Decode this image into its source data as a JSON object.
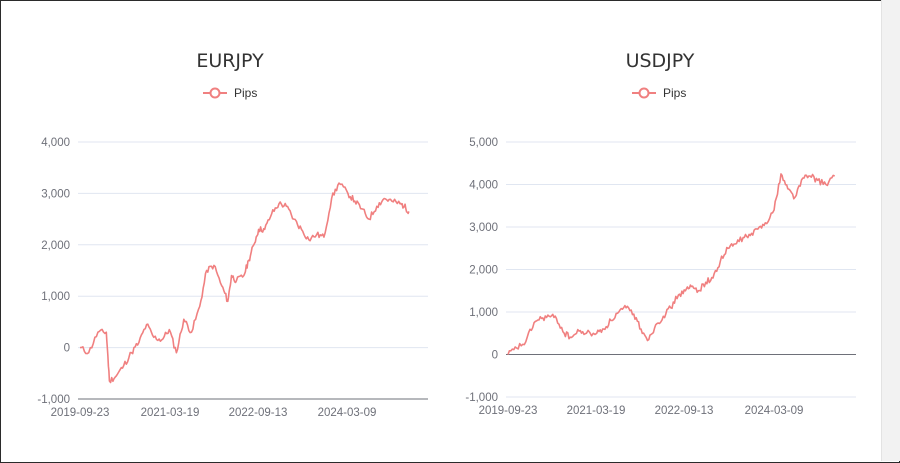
{
  "charts": [
    {
      "title": "EURJPY",
      "legend": "Pips",
      "y_ticks": [
        "4,000",
        "3,000",
        "2,000",
        "1,000",
        "0",
        "-1,000"
      ],
      "x_ticks": [
        "2019-09-23",
        "2021-03-19",
        "2022-09-13",
        "2024-03-09"
      ]
    },
    {
      "title": "USDJPY",
      "legend": "Pips",
      "y_ticks": [
        "5,000",
        "4,000",
        "3,000",
        "2,000",
        "1,000",
        "0",
        "-1,000"
      ],
      "x_ticks": [
        "2019-09-23",
        "2021-03-19",
        "2022-09-13",
        "2024-03-09"
      ]
    }
  ],
  "chart_data": [
    {
      "type": "line",
      "title": "EURJPY",
      "xlabel": "",
      "ylabel": "",
      "ylim": [
        -1000,
        4000
      ],
      "grid": true,
      "legend_position": "top-center",
      "series": [
        {
          "name": "Pips",
          "color": "#f08080",
          "x": [
            "2019-09-23",
            "2019-11-15",
            "2020-01-10",
            "2020-03-01",
            "2020-03-20",
            "2020-05-01",
            "2020-06-15",
            "2020-08-01",
            "2020-09-15",
            "2020-11-01",
            "2020-12-15",
            "2021-02-01",
            "2021-03-19",
            "2021-05-01",
            "2021-06-15",
            "2021-08-01",
            "2021-09-20",
            "2021-11-01",
            "2021-12-15",
            "2022-02-01",
            "2022-03-10",
            "2022-04-01",
            "2022-05-01",
            "2022-06-15",
            "2022-07-15",
            "2022-08-15",
            "2022-09-13",
            "2022-10-20",
            "2022-12-01",
            "2023-01-15",
            "2023-03-01",
            "2023-04-15",
            "2023-06-01",
            "2023-07-15",
            "2023-09-01",
            "2023-10-15",
            "2023-12-01",
            "2024-01-15",
            "2024-03-09",
            "2024-04-20",
            "2024-06-01",
            "2024-07-15",
            "2024-09-01",
            "2024-10-15",
            "2024-12-01",
            "2025-01-20",
            "2025-02-15",
            "2025-03-15"
          ],
          "y": [
            0,
            -100,
            300,
            300,
            -650,
            -550,
            -350,
            -100,
            100,
            450,
            200,
            150,
            350,
            -100,
            550,
            300,
            800,
            1500,
            1600,
            1200,
            900,
            1400,
            1300,
            1400,
            1700,
            2000,
            2300,
            2300,
            2600,
            2800,
            2750,
            2500,
            2300,
            2100,
            2200,
            2150,
            2900,
            3200,
            3000,
            2850,
            2700,
            2500,
            2750,
            2900,
            2850,
            2800,
            2750,
            2650
          ]
        }
      ]
    },
    {
      "type": "line",
      "title": "USDJPY",
      "xlabel": "",
      "ylabel": "",
      "ylim": [
        -1000,
        5000
      ],
      "grid": true,
      "legend_position": "top-center",
      "series": [
        {
          "name": "Pips",
          "color": "#f08080",
          "x": [
            "2019-09-23",
            "2019-11-15",
            "2020-01-10",
            "2020-03-01",
            "2020-04-15",
            "2020-06-01",
            "2020-07-15",
            "2020-09-01",
            "2020-10-15",
            "2020-12-01",
            "2021-01-15",
            "2021-03-19",
            "2021-05-01",
            "2021-06-15",
            "2021-08-01",
            "2021-09-15",
            "2021-11-01",
            "2021-12-15",
            "2022-02-01",
            "2022-03-15",
            "2022-05-01",
            "2022-06-15",
            "2022-08-01",
            "2022-09-13",
            "2022-10-20",
            "2022-12-01",
            "2023-01-15",
            "2023-03-01",
            "2023-04-15",
            "2023-06-01",
            "2023-07-15",
            "2023-09-01",
            "2023-10-15",
            "2023-12-01",
            "2024-01-15",
            "2024-03-09",
            "2024-04-20",
            "2024-06-01",
            "2024-07-15",
            "2024-09-01",
            "2024-10-15",
            "2024-12-01",
            "2025-01-20",
            "2025-03-15"
          ],
          "y": [
            0,
            150,
            300,
            750,
            850,
            900,
            850,
            500,
            400,
            550,
            500,
            500,
            600,
            800,
            1000,
            1100,
            950,
            600,
            350,
            700,
            900,
            1100,
            1400,
            1500,
            1600,
            1500,
            1700,
            1800,
            2200,
            2500,
            2600,
            2750,
            2800,
            2950,
            3100,
            3400,
            4250,
            3900,
            3700,
            4150,
            4200,
            4100,
            4000,
            4200
          ]
        }
      ]
    }
  ]
}
